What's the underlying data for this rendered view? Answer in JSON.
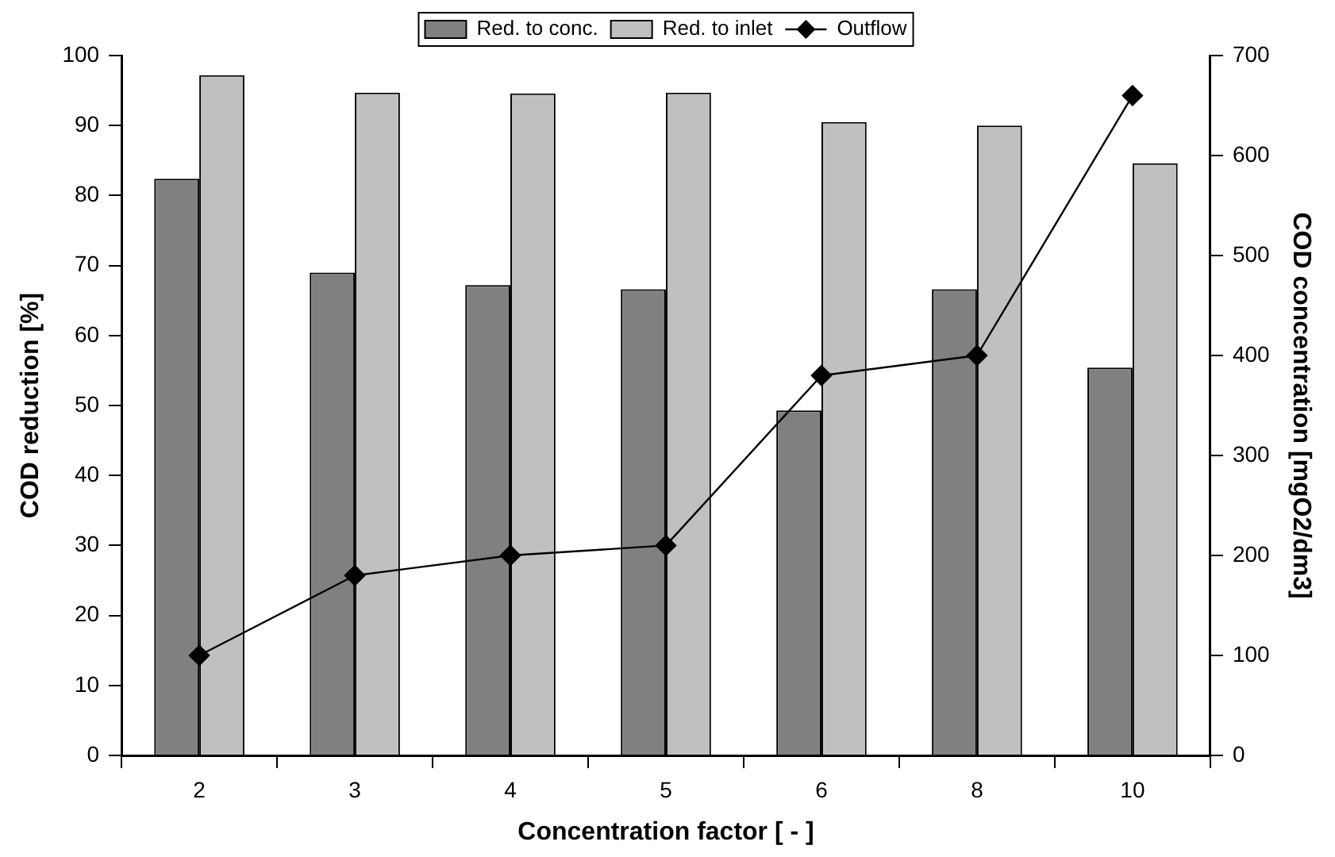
{
  "chart_data": {
    "type": "bar",
    "xlabel": "Concentration factor [ - ]",
    "ylabel": "COD reduction [%]",
    "y2label": "COD concentration [mgO2/dm3]",
    "categories": [
      "2",
      "3",
      "4",
      "5",
      "6",
      "8",
      "10"
    ],
    "series": [
      {
        "name": "Red. to conc.",
        "color": "#808080",
        "values": [
          82.4,
          69,
          67.2,
          66.6,
          49.3,
          66.6,
          55.4
        ]
      },
      {
        "name": "Red. to inlet",
        "color": "#c0c0c0",
        "values": [
          97.2,
          94.7,
          94.6,
          94.7,
          90.5,
          90,
          84.6
        ]
      },
      {
        "name": "Outflow",
        "type": "line",
        "axis": "y2",
        "color": "#000000",
        "marker": "diamond",
        "values": [
          100,
          180,
          200,
          210,
          380,
          400,
          660
        ]
      }
    ],
    "ylim": [
      0,
      100
    ],
    "yticks": [
      0,
      10,
      20,
      30,
      40,
      50,
      60,
      70,
      80,
      90,
      100
    ],
    "y2lim": [
      0,
      700
    ],
    "y2ticks": [
      0,
      100,
      200,
      300,
      400,
      500,
      600,
      700
    ],
    "grid": false,
    "legend": "top"
  }
}
